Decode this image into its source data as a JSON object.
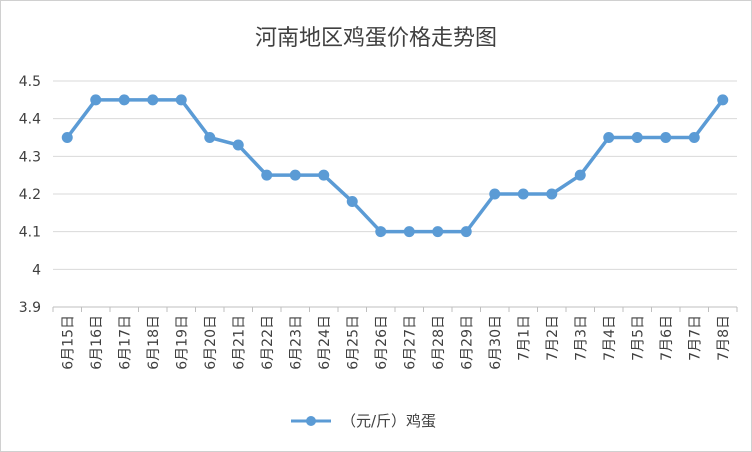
{
  "colors": {
    "series": "#5b9bd5",
    "grid": "#d9d9d9",
    "text": "#404040"
  },
  "chart_data": {
    "type": "line",
    "title": "河南地区鸡蛋价格走势图",
    "xlabel": "",
    "ylabel": "",
    "ylim": [
      3.9,
      4.5
    ],
    "yticks": [
      "3.9",
      "4",
      "4.1",
      "4.2",
      "4.3",
      "4.4",
      "4.5"
    ],
    "grid": true,
    "legend_position": "bottom",
    "categories": [
      "6月15日",
      "6月16日",
      "6月17日",
      "6月18日",
      "6月19日",
      "6月20日",
      "6月21日",
      "6月22日",
      "6月23日",
      "6月24日",
      "6月25日",
      "6月26日",
      "6月27日",
      "6月28日",
      "6月29日",
      "6月30日",
      "7月1日",
      "7月2日",
      "7月3日",
      "7月4日",
      "7月5日",
      "7月6日",
      "7月7日",
      "7月8日"
    ],
    "series": [
      {
        "name": "（元/斤）鸡蛋",
        "values": [
          4.35,
          4.45,
          4.45,
          4.45,
          4.45,
          4.35,
          4.33,
          4.25,
          4.25,
          4.25,
          4.18,
          4.1,
          4.1,
          4.1,
          4.1,
          4.2,
          4.2,
          4.2,
          4.25,
          4.35,
          4.35,
          4.35,
          4.35,
          4.45
        ]
      }
    ]
  }
}
